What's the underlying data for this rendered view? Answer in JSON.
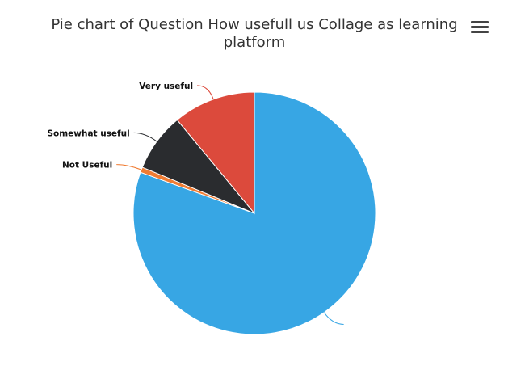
{
  "chart_data": {
    "type": "pie",
    "title": "Pie chart of Question How usefull us Collage as learning platform",
    "slices": [
      {
        "name": "",
        "value": 80.5,
        "color": "#37a6e4",
        "label": ""
      },
      {
        "name": "Not Useful",
        "value": 0.7,
        "color": "#f07c33",
        "label": "Not Useful"
      },
      {
        "name": "Somewhat useful",
        "value": 7.8,
        "color": "#2a2c2f",
        "label": "Somewhat useful"
      },
      {
        "name": "Very useful",
        "value": 11.0,
        "color": "#dc4a3c",
        "label": "Very useful"
      }
    ],
    "legend": "none"
  },
  "toolbar": {
    "menu_icon": "hamburger-menu-icon"
  }
}
